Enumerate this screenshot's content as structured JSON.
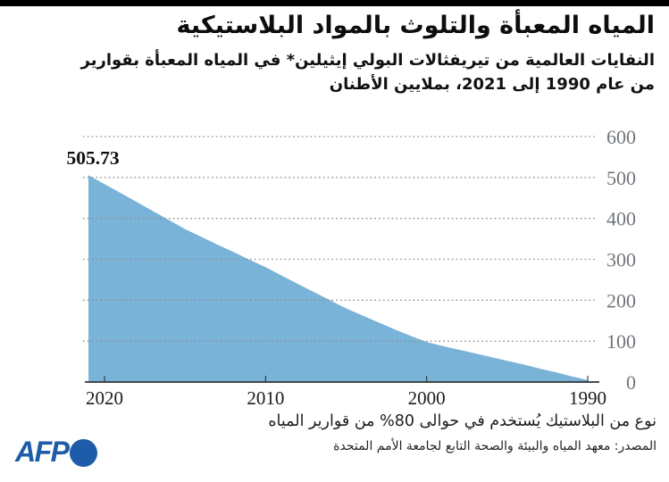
{
  "header": {
    "title": "المياه المعبأة والتلوث بالمواد البلاستيكية",
    "subtitle_line1": "النفايات العالمية من تيريفثالات البولي إيثيلين* في المياه المعبأة بقوارير",
    "subtitle_line2": "من عام 1990 إلى 2021، بملايين الأطنان"
  },
  "chart_data": {
    "type": "area",
    "title": "النفايات العالمية من تيريفثالات البولي إيثيلين في المياه المعبأة بقوارير",
    "xlabel": "",
    "ylabel": "بملايين الأطنان",
    "years": [
      1990,
      1991,
      1992,
      1993,
      1994,
      1995,
      1996,
      1997,
      1998,
      1999,
      2000,
      2001,
      2002,
      2003,
      2004,
      2005,
      2006,
      2007,
      2008,
      2009,
      2010,
      2011,
      2012,
      2013,
      2014,
      2015,
      2016,
      2017,
      2018,
      2019,
      2020,
      2021
    ],
    "values": [
      5,
      14,
      24,
      33,
      43,
      52,
      61,
      70,
      79,
      88,
      98,
      113,
      129,
      146,
      163,
      180,
      200,
      220,
      240,
      260,
      281,
      299,
      318,
      336,
      355,
      374,
      396,
      418,
      440,
      462,
      484,
      505.73
    ],
    "x_ticks": [
      2020,
      2010,
      2000,
      1990
    ],
    "x_axis_reversed": true,
    "y_ticks": [
      0,
      100,
      200,
      300,
      400,
      500,
      600
    ],
    "ylim": [
      0,
      600
    ],
    "grid": "dotted-horizontal",
    "legend": "none",
    "annotation": {
      "label": "505.73",
      "year": 2021,
      "value": 505.73
    },
    "colors": {
      "area_fill": "#7ab3d8",
      "gridline": "#8c8c8c",
      "axis_line": "#333333",
      "y_tick_label": "#71767b",
      "x_tick_label": "#1b1b1b"
    }
  },
  "footnote": "نوع من البلاستيك يُستخدم في حوالى 80% من قوارير المياه",
  "source": "المصدر: معهد المياه والبيئة والصحة التابع لجامعة الأمم المتحدة",
  "logo": {
    "text": "AFP",
    "color": "#1e5ba9"
  }
}
